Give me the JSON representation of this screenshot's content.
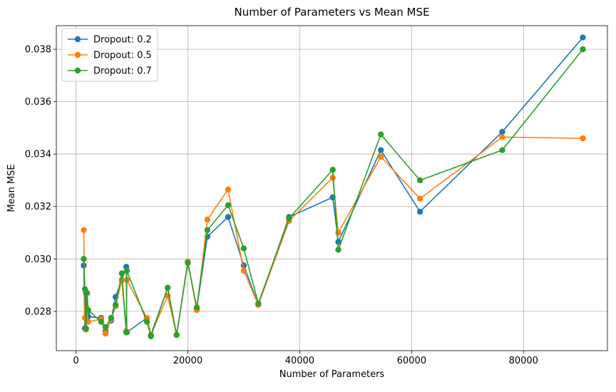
{
  "chart_data": {
    "type": "line",
    "title": "Number of Parameters vs Mean MSE",
    "xlabel": "Number of Parameters",
    "ylabel": "Mean MSE",
    "xlim": [
      -3500,
      95000
    ],
    "ylim": [
      0.0265,
      0.0389
    ],
    "xticks": [
      0,
      20000,
      40000,
      60000,
      80000
    ],
    "xtick_labels": [
      "0",
      "20000",
      "40000",
      "60000",
      "80000"
    ],
    "yticks": [
      0.028,
      0.03,
      0.032,
      0.034,
      0.036,
      0.038
    ],
    "ytick_labels": [
      "0.028",
      "0.030",
      "0.032",
      "0.034",
      "0.036",
      "0.038"
    ],
    "grid": true,
    "legend_position": "top-left",
    "series": [
      {
        "name": "Dropout: 0.2",
        "color": "#1f77b4",
        "points": [
          [
            1400,
            0.02975
          ],
          [
            1600,
            0.02735
          ],
          [
            1800,
            0.0287
          ],
          [
            2000,
            0.0279
          ],
          [
            2200,
            0.0278
          ],
          [
            4500,
            0.02775
          ],
          [
            5300,
            0.02725
          ],
          [
            6300,
            0.02765
          ],
          [
            7100,
            0.02855
          ],
          [
            8200,
            0.0292
          ],
          [
            9000,
            0.0297
          ],
          [
            9100,
            0.0272
          ],
          [
            12700,
            0.02775
          ],
          [
            13400,
            0.0271
          ],
          [
            16400,
            0.0289
          ],
          [
            18000,
            0.0271
          ],
          [
            20000,
            0.0299
          ],
          [
            21600,
            0.0281
          ],
          [
            23500,
            0.03085
          ],
          [
            27200,
            0.0316
          ],
          [
            30000,
            0.02975
          ],
          [
            32600,
            0.02825
          ],
          [
            38100,
            0.0316
          ],
          [
            45900,
            0.03235
          ],
          [
            46900,
            0.03065
          ],
          [
            54500,
            0.03415
          ],
          [
            61500,
            0.0318
          ],
          [
            76200,
            0.03485
          ],
          [
            90600,
            0.03845
          ]
        ]
      },
      {
        "name": "Dropout: 0.5",
        "color": "#ff7f0e",
        "points": [
          [
            1400,
            0.0311
          ],
          [
            1600,
            0.02775
          ],
          [
            1800,
            0.0273
          ],
          [
            2000,
            0.0281
          ],
          [
            2200,
            0.0276
          ],
          [
            4500,
            0.0277
          ],
          [
            5300,
            0.02715
          ],
          [
            6300,
            0.0277
          ],
          [
            7100,
            0.0282
          ],
          [
            8200,
            0.0292
          ],
          [
            9000,
            0.02725
          ],
          [
            9100,
            0.0292
          ],
          [
            12700,
            0.02775
          ],
          [
            13400,
            0.0271
          ],
          [
            16400,
            0.0286
          ],
          [
            18000,
            0.0271
          ],
          [
            20000,
            0.0299
          ],
          [
            21600,
            0.02805
          ],
          [
            23500,
            0.0315
          ],
          [
            27200,
            0.03265
          ],
          [
            30000,
            0.02955
          ],
          [
            32600,
            0.02825
          ],
          [
            38100,
            0.03145
          ],
          [
            45900,
            0.0331
          ],
          [
            46900,
            0.031
          ],
          [
            54500,
            0.0339
          ],
          [
            61500,
            0.0323
          ],
          [
            76200,
            0.03465
          ],
          [
            90600,
            0.0346
          ]
        ]
      },
      {
        "name": "Dropout: 0.7",
        "color": "#2ca02c",
        "points": [
          [
            1400,
            0.03
          ],
          [
            1600,
            0.02885
          ],
          [
            1800,
            0.02735
          ],
          [
            2000,
            0.0287
          ],
          [
            2200,
            0.02805
          ],
          [
            4500,
            0.0276
          ],
          [
            5300,
            0.0274
          ],
          [
            6300,
            0.02775
          ],
          [
            7100,
            0.02825
          ],
          [
            8200,
            0.02945
          ],
          [
            9000,
            0.0272
          ],
          [
            9100,
            0.02955
          ],
          [
            12700,
            0.0276
          ],
          [
            13400,
            0.02705
          ],
          [
            16400,
            0.0289
          ],
          [
            18000,
            0.0271
          ],
          [
            20000,
            0.02985
          ],
          [
            21600,
            0.02815
          ],
          [
            23500,
            0.0311
          ],
          [
            27200,
            0.03205
          ],
          [
            30000,
            0.0304
          ],
          [
            32600,
            0.0283
          ],
          [
            38100,
            0.03155
          ],
          [
            45900,
            0.0334
          ],
          [
            46900,
            0.03035
          ],
          [
            54500,
            0.03475
          ],
          [
            61500,
            0.033
          ],
          [
            76200,
            0.03415
          ],
          [
            90600,
            0.038
          ]
        ]
      }
    ]
  }
}
